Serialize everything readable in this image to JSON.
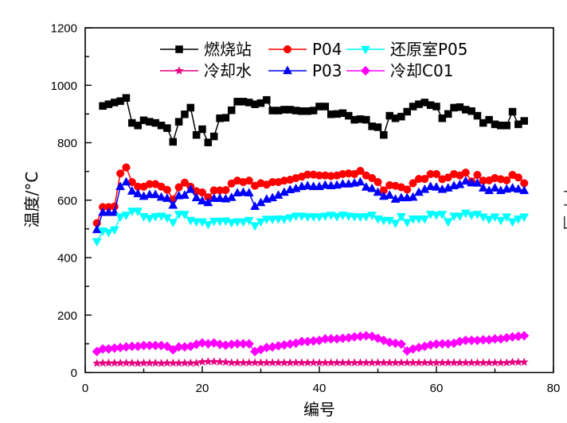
{
  "chart_data": {
    "type": "line",
    "title": "",
    "xlabel": "编号",
    "ylabel": "温度/°C",
    "xlim": [
      0,
      80
    ],
    "ylim": [
      0,
      1200
    ],
    "xticks": [
      0,
      20,
      40,
      60,
      80
    ],
    "xtick_labels": [
      "0",
      "20",
      "40",
      "60",
      "80"
    ],
    "yticks": [
      0,
      200,
      400,
      600,
      800,
      1000,
      1200
    ],
    "ytick_labels": [
      "0",
      "200",
      "400",
      "600",
      "800",
      "1000",
      "1200"
    ],
    "x_minor_step": 10,
    "y_minor_step": 100,
    "grid": false,
    "legend": {
      "position": "top-center",
      "rows": 2,
      "order": "column-major"
    },
    "series": [
      {
        "name": "燃烧站",
        "color": "#000000",
        "marker": "square",
        "x_start": 3,
        "values": [
          928,
          934,
          940,
          945,
          956,
          869,
          860,
          878,
          873,
          869,
          860,
          851,
          803,
          873,
          899,
          922,
          827,
          847,
          801,
          822,
          885,
          887,
          913,
          943,
          943,
          940,
          934,
          938,
          949,
          912,
          912,
          915,
          915,
          912,
          910,
          910,
          912,
          926,
          926,
          899,
          900,
          903,
          894,
          880,
          882,
          880,
          857,
          854,
          827,
          894,
          885,
          891,
          908,
          926,
          934,
          940,
          931,
          926,
          885,
          900,
          922,
          924,
          915,
          910,
          894,
          869,
          880,
          864,
          860,
          860,
          908,
          864,
          876
        ]
      },
      {
        "name": "冷却水",
        "color": "#E4007F",
        "marker": "star",
        "x_start": 2,
        "values": [
          32,
          33,
          33,
          33,
          33,
          33,
          33,
          32,
          33,
          33,
          33,
          32,
          33,
          33,
          33,
          33,
          33,
          33,
          37,
          38,
          38,
          37,
          36,
          34,
          34,
          34,
          34,
          34,
          34,
          34,
          34,
          34,
          34,
          34,
          34,
          34,
          34,
          34,
          34,
          34,
          34,
          34,
          34,
          34,
          34,
          34,
          34,
          34,
          34,
          34,
          34,
          34,
          34,
          34,
          34,
          34,
          34,
          34,
          34,
          34,
          34,
          34,
          34,
          34,
          34,
          34,
          34,
          34,
          34,
          34,
          34,
          36,
          36,
          36
        ]
      },
      {
        "name": "P04",
        "color": "#FF0000",
        "marker": "circle",
        "x_start": 2,
        "values": [
          520,
          576,
          576,
          578,
          693,
          714,
          663,
          647,
          647,
          656,
          656,
          647,
          636,
          603,
          645,
          661,
          647,
          631,
          627,
          610,
          634,
          634,
          635,
          658,
          668,
          663,
          668,
          650,
          659,
          654,
          663,
          663,
          668,
          671,
          677,
          682,
          689,
          689,
          686,
          686,
          684,
          686,
          691,
          693,
          691,
          702,
          686,
          677,
          663,
          634,
          652,
          650,
          645,
          637,
          659,
          674,
          674,
          691,
          691,
          673,
          679,
          691,
          686,
          696,
          665,
          688,
          668,
          669,
          677,
          673,
          669,
          688,
          679,
          659
        ]
      },
      {
        "name": "P03",
        "color": "#0000FF",
        "marker": "triangle-up",
        "x_start": 2,
        "values": [
          497,
          557,
          557,
          557,
          647,
          663,
          631,
          622,
          613,
          619,
          619,
          610,
          606,
          582,
          615,
          617,
          637,
          608,
          597,
          591,
          606,
          606,
          604,
          609,
          625,
          627,
          625,
          578,
          591,
          603,
          608,
          617,
          627,
          636,
          640,
          647,
          650,
          647,
          647,
          652,
          650,
          652,
          656,
          656,
          659,
          663,
          645,
          640,
          627,
          613,
          617,
          603,
          608,
          608,
          610,
          627,
          637,
          647,
          645,
          637,
          642,
          650,
          654,
          666,
          660,
          659,
          642,
          633,
          642,
          633,
          638,
          642,
          638,
          633
        ]
      },
      {
        "name": "还原室P05",
        "color": "#00FFFF",
        "marker": "triangle-down",
        "x_start": 2,
        "values": [
          456,
          493,
          488,
          497,
          542,
          548,
          562,
          562,
          543,
          537,
          543,
          545,
          539,
          523,
          551,
          551,
          530,
          525,
          525,
          516,
          527,
          527,
          528,
          522,
          525,
          525,
          530,
          511,
          525,
          534,
          534,
          535,
          534,
          539,
          545,
          545,
          542,
          543,
          542,
          545,
          548,
          543,
          548,
          545,
          543,
          542,
          543,
          548,
          535,
          530,
          530,
          520,
          543,
          523,
          535,
          535,
          535,
          551,
          548,
          551,
          525,
          545,
          545,
          555,
          548,
          551,
          542,
          534,
          542,
          530,
          542,
          525,
          535,
          542
        ]
      },
      {
        "name": "冷却C01",
        "color": "#FF00FF",
        "marker": "diamond",
        "x_start": 2,
        "values": [
          73,
          82,
          82,
          85,
          87,
          89,
          91,
          91,
          94,
          94,
          94,
          94,
          91,
          79,
          89,
          89,
          91,
          98,
          103,
          100,
          103,
          98,
          95,
          98,
          100,
          100,
          100,
          73,
          80,
          87,
          89,
          93,
          96,
          99,
          102,
          108,
          108,
          110,
          112,
          117,
          117,
          117,
          119,
          121,
          124,
          126,
          128,
          126,
          119,
          112,
          105,
          102,
          99,
          75,
          82,
          87,
          91,
          96,
          99,
          100,
          100,
          102,
          108,
          112,
          112,
          112,
          114,
          114,
          117,
          117,
          121,
          124,
          126,
          128
        ]
      }
    ]
  }
}
